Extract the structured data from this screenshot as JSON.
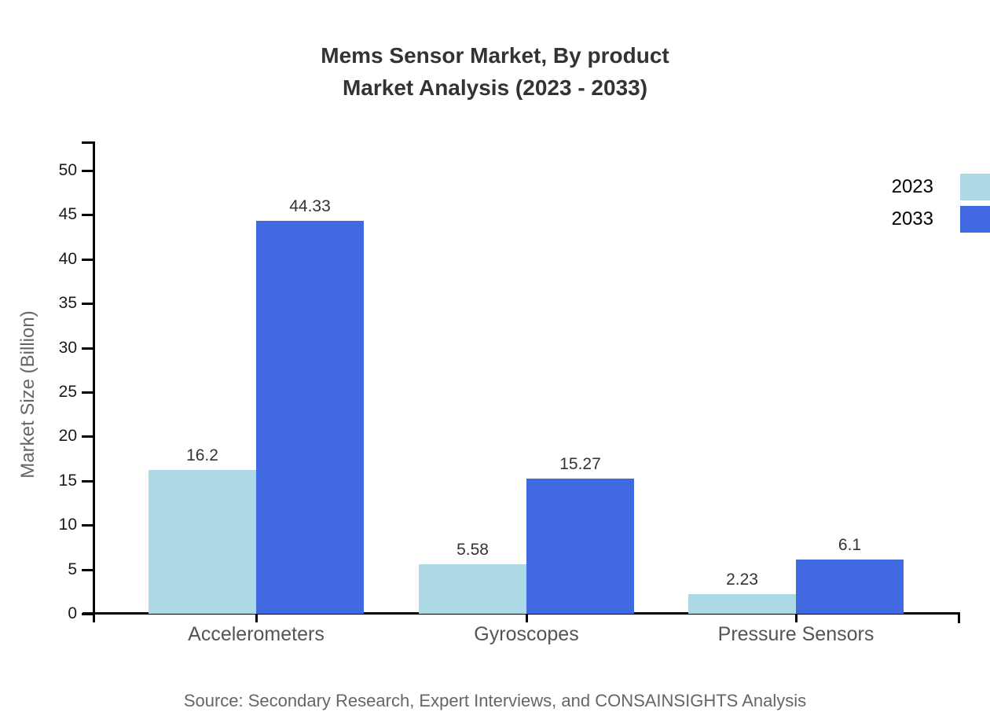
{
  "title": {
    "line1": "Mems Sensor Market, By product",
    "line2": "Market Analysis (2023 - 2033)"
  },
  "chart_data": {
    "type": "bar",
    "title": "Mems Sensor Market, By product Market Analysis (2023 - 2033)",
    "categories": [
      "Accelerometers",
      "Gyroscopes",
      "Pressure Sensors"
    ],
    "series": [
      {
        "name": "2023",
        "color": "#ADD8E6",
        "values": [
          16.2,
          5.58,
          2.23
        ]
      },
      {
        "name": "2033",
        "color": "#4169E1",
        "values": [
          44.33,
          15.27,
          6.1
        ]
      }
    ],
    "value_labels": [
      [
        "16.2",
        "5.58",
        "2.23"
      ],
      [
        "44.33",
        "15.27",
        "6.1"
      ]
    ],
    "xlabel": "",
    "ylabel": "Market Size (Billion)",
    "ylim": [
      0,
      50
    ],
    "y_ticks": [
      0,
      5,
      10,
      15,
      20,
      25,
      30,
      35,
      40,
      45,
      50
    ],
    "grid": false,
    "legend_position": "top-right"
  },
  "source": "Source: Secondary Research, Expert Interviews, and CONSAINSIGHTS Analysis",
  "colors": {
    "axis": "#000000",
    "title_text": "#333333",
    "tick_text": "#1a1a1a",
    "muted_text": "#666666",
    "series_2023": "#ADD8E6",
    "series_2033": "#4169E1"
  }
}
